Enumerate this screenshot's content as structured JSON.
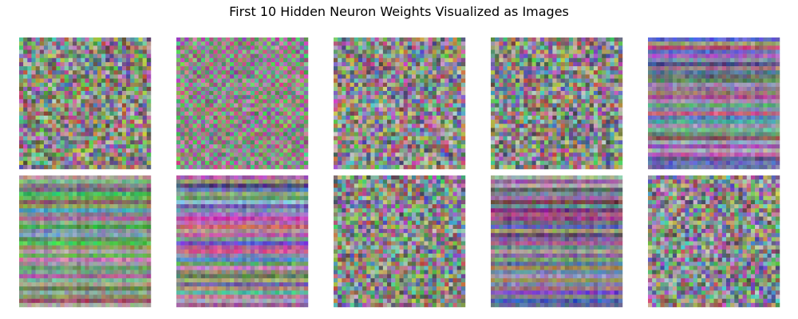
{
  "figure": {
    "title": "First 10 Hidden Neuron Weights Visualized as Images"
  },
  "chart_data": {
    "type": "heatmap",
    "title": "First 10 Hidden Neuron Weights Visualized as Images",
    "image_count": 10,
    "layout": {
      "rows": 2,
      "cols": 5
    },
    "pixel_grid": [
      32,
      32
    ],
    "channels": "RGB",
    "axes_visible": false,
    "images": [
      {
        "index": 1,
        "pattern": "noise",
        "mean_color": "#8a8a7e"
      },
      {
        "index": 2,
        "pattern": "checkerboard",
        "mean_color": "#8e8a86"
      },
      {
        "index": 3,
        "pattern": "noise",
        "mean_color": "#8a8886"
      },
      {
        "index": 4,
        "pattern": "noise",
        "mean_color": "#868a82"
      },
      {
        "index": 5,
        "pattern": "horizontal-stripes",
        "mean_color": "#8c7e96"
      },
      {
        "index": 6,
        "pattern": "horizontal-stripes",
        "mean_color": "#86907a"
      },
      {
        "index": 7,
        "pattern": "horizontal-stripes",
        "mean_color": "#8e8690"
      },
      {
        "index": 8,
        "pattern": "noise",
        "mean_color": "#888c84"
      },
      {
        "index": 9,
        "pattern": "horizontal-stripes",
        "mean_color": "#807a8a"
      },
      {
        "index": 10,
        "pattern": "noise",
        "mean_color": "#8a8a8a"
      }
    ]
  }
}
